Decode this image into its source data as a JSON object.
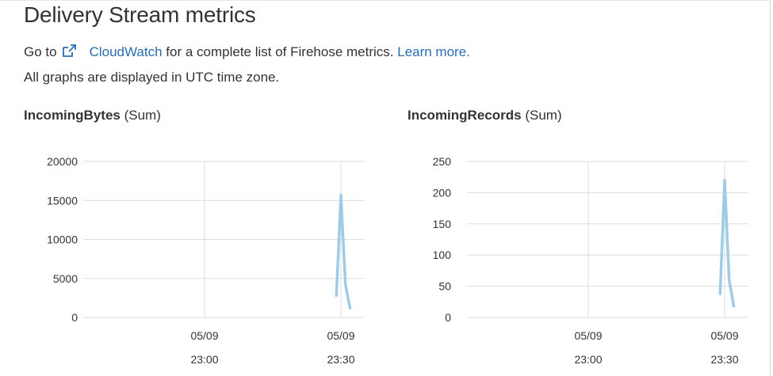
{
  "header": {
    "title": "Delivery Stream metrics",
    "goto_text": "Go to",
    "cloudwatch_link": "CloudWatch",
    "goto_rest": " for a complete list of Firehose metrics.",
    "learn_more": "Learn more.",
    "utc_note": "All graphs are displayed in UTC time zone."
  },
  "colors": {
    "link": "#2b6cb0",
    "series": "#9fcbe6",
    "grid": "#dddddd"
  },
  "icons": {
    "external_link": "external-link-icon"
  },
  "chart_data": [
    {
      "type": "line",
      "metric": "IncomingBytes",
      "stat": "(Sum)",
      "ylim": [
        0,
        20000
      ],
      "yticks": [
        "20000",
        "15000",
        "10000",
        "5000",
        "0"
      ],
      "xticks": [
        {
          "date": "05/09",
          "time": "23:00"
        },
        {
          "date": "05/09",
          "time": "23:30"
        }
      ],
      "series": [
        {
          "x": [
            "23:29",
            "23:30",
            "23:31",
            "23:32"
          ],
          "y": [
            2800,
            15700,
            4200,
            1200
          ]
        }
      ]
    },
    {
      "type": "line",
      "metric": "IncomingRecords",
      "stat": "(Sum)",
      "ylim": [
        0,
        250
      ],
      "yticks": [
        "250",
        "200",
        "150",
        "100",
        "50",
        "0"
      ],
      "xticks": [
        {
          "date": "05/09",
          "time": "23:00"
        },
        {
          "date": "05/09",
          "time": "23:30"
        }
      ],
      "series": [
        {
          "x": [
            "23:29",
            "23:30",
            "23:31",
            "23:32"
          ],
          "y": [
            38,
            220,
            60,
            18
          ]
        }
      ]
    }
  ]
}
